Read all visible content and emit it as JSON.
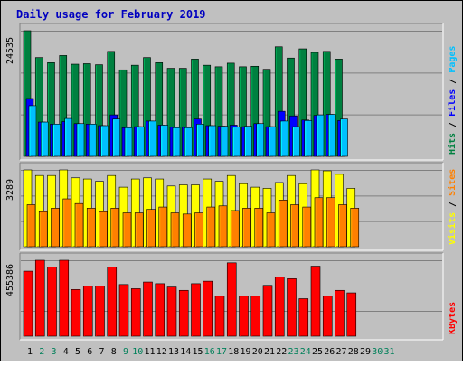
{
  "chart_data": {
    "type": "bar",
    "title": "Daily usage for February 2019",
    "categories": [
      "1",
      "2",
      "3",
      "4",
      "5",
      "6",
      "7",
      "8",
      "9",
      "10",
      "11",
      "12",
      "13",
      "14",
      "15",
      "16",
      "17",
      "18",
      "19",
      "20",
      "21",
      "22",
      "23",
      "24",
      "25",
      "26",
      "27",
      "28",
      "29",
      "30",
      "31"
    ],
    "weekend_days": [
      2,
      3,
      9,
      10,
      16,
      17,
      23,
      24,
      30,
      31
    ],
    "panels": [
      {
        "id": "hits-files-pages",
        "ymax_label": "24535",
        "ymax": 24535,
        "side_labels": [
          {
            "text": "Hits",
            "color": "#008040"
          },
          {
            "text": " / ",
            "color": "#000000"
          },
          {
            "text": "Files",
            "color": "#0000ff"
          },
          {
            "text": " / ",
            "color": "#000000"
          },
          {
            "text": "Pages",
            "color": "#00c0ff"
          }
        ],
        "series": [
          {
            "name": "Hits",
            "color": "#008040",
            "values": [
              24535,
              19300,
              18300,
              19700,
              18000,
              18100,
              17900,
              20500,
              16900,
              17800,
              19300,
              18300,
              17200,
              17200,
              19000,
              17800,
              17500,
              18200,
              17500,
              17600,
              17000,
              21400,
              19200,
              21000,
              20300,
              20500,
              19000,
              0,
              0,
              0,
              0
            ]
          },
          {
            "name": "Files",
            "color": "#0000ff",
            "values": [
              11300,
              6700,
              6300,
              6800,
              6400,
              6300,
              6000,
              8100,
              5600,
              5800,
              6900,
              6100,
              5700,
              5700,
              7300,
              6000,
              5900,
              6100,
              5800,
              6400,
              5800,
              8800,
              7900,
              7100,
              8000,
              8200,
              7000,
              0,
              0,
              0,
              0
            ]
          },
          {
            "name": "Pages",
            "color": "#00c0ff",
            "values": [
              9900,
              6700,
              6300,
              7400,
              6400,
              6300,
              6000,
              7300,
              5600,
              5800,
              6900,
              6100,
              5600,
              5600,
              6300,
              6000,
              5900,
              5700,
              5900,
              6400,
              5800,
              6900,
              5800,
              7000,
              8100,
              8200,
              7300,
              0,
              0,
              0,
              0
            ]
          }
        ]
      },
      {
        "id": "visits-sites",
        "ymax_label": "3289",
        "ymax": 3289,
        "side_labels": [
          {
            "text": "Visits",
            "color": "#ffff00"
          },
          {
            "text": " / ",
            "color": "#000000"
          },
          {
            "text": "Sites",
            "color": "#ff8000"
          }
        ],
        "series": [
          {
            "name": "Visits",
            "color": "#ffff00",
            "values": [
              3289,
              3050,
              3050,
              3289,
              2950,
              2900,
              2800,
              3050,
              2550,
              2900,
              2950,
              2900,
              2600,
              2650,
              2650,
              2900,
              2800,
              3050,
              2700,
              2550,
              2500,
              2750,
              3050,
              2700,
              3289,
              3250,
              3100,
              2500,
              0,
              0,
              0
            ]
          },
          {
            "name": "Sites",
            "color": "#ff8000",
            "values": [
              1800,
              1500,
              1650,
              2050,
              1850,
              1650,
              1500,
              1650,
              1450,
              1450,
              1600,
              1700,
              1450,
              1400,
              1450,
              1700,
              1750,
              1550,
              1650,
              1650,
              1450,
              2000,
              1800,
              1700,
              2100,
              2100,
              1800,
              1650,
              0,
              0,
              0
            ]
          }
        ]
      },
      {
        "id": "kbytes",
        "ymax_label": "455386",
        "ymax": 455386,
        "side_labels": [
          {
            "text": "KBytes",
            "color": "#ff0000"
          }
        ],
        "series": [
          {
            "name": "KBytes",
            "color": "#ff0000",
            "values": [
              390000,
              455386,
              415000,
              455386,
              280000,
              300000,
              300000,
              415000,
              310000,
              285000,
              325000,
              315000,
              295000,
              275000,
              315000,
              330000,
              240000,
              440000,
              240000,
              240000,
              305000,
              355000,
              345000,
              225000,
              420000,
              240000,
              275000,
              260000,
              0,
              0,
              0
            ]
          }
        ]
      }
    ]
  }
}
